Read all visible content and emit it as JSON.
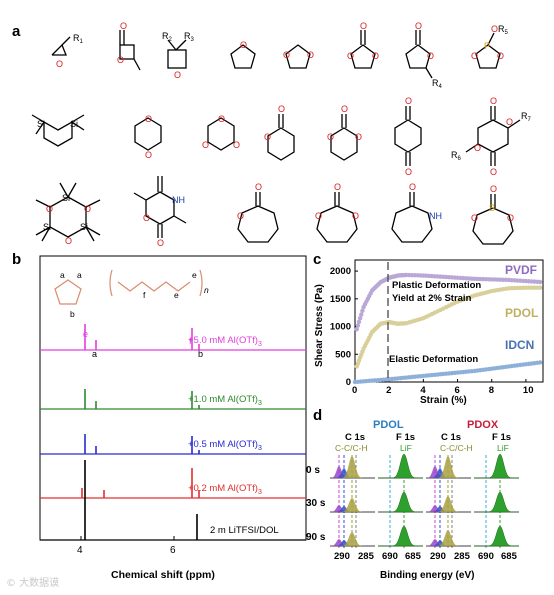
{
  "panels": {
    "a": "a",
    "b": "b",
    "c": "c",
    "d": "d"
  },
  "panel_a": {
    "substituents": {
      "r1": "R",
      "r1_sub": "1",
      "r2": "R",
      "r2_sub": "2",
      "r3": "R",
      "r3_sub": "3",
      "r4": "R",
      "r4_sub": "4",
      "r5": "O",
      "r5b": "R",
      "r5_sub": "5",
      "r6": "R",
      "r6_sub": "6",
      "r7": "R",
      "r7_sub": "7",
      "nh": "NH",
      "n": "N",
      "h": "H",
      "si": "Si",
      "s": "S",
      "p": "P",
      "o": "O"
    }
  },
  "panel_b": {
    "xlabel": "Chemical shift (ppm)",
    "tick_labels": [
      "4",
      "6"
    ],
    "structure_labels": {
      "a": "a",
      "b": "b",
      "e": "e",
      "f": "f",
      "n": "n"
    },
    "traces": [
      {
        "label": "+5.0 mM Al(OTf)",
        "sub": "3",
        "color": "#e040e0"
      },
      {
        "label": "+1.0 mM Al(OTf)",
        "sub": "3",
        "color": "#2e8b2e"
      },
      {
        "label": "+0.5 mM Al(OTf)",
        "sub": "3",
        "color": "#2a2ad0"
      },
      {
        "label": "+0.2 mM Al(OTf)",
        "sub": "3",
        "color": "#e03030"
      },
      {
        "label": "2 m LiTFSI/DOL",
        "sub": "",
        "color": "#000000"
      }
    ],
    "peak_labels": [
      "e",
      "a",
      "f",
      "b"
    ]
  },
  "chart_data": [
    {
      "type": "scatter",
      "title": "",
      "xlabel": "Strain (%)",
      "ylabel": "Shear Stress (Pa)",
      "xlim": [
        0,
        11
      ],
      "ylim": [
        0,
        2200
      ],
      "xticks": [
        0,
        2,
        4,
        6,
        8,
        10
      ],
      "yticks": [
        0,
        500,
        1000,
        1500,
        2000
      ],
      "annotations": [
        "Plastic Deformation",
        "Yield at 2% Strain",
        "Elastic Deformation"
      ],
      "series": [
        {
          "name": "PVDF",
          "color": "#b9a7d6",
          "x": [
            0.1,
            0.5,
            1,
            1.5,
            2,
            2.5,
            3,
            4,
            5,
            6,
            7,
            8,
            9,
            10,
            11
          ],
          "y": [
            950,
            1350,
            1650,
            1800,
            1880,
            1920,
            1930,
            1920,
            1900,
            1880,
            1860,
            1850,
            1840,
            1820,
            1800
          ]
        },
        {
          "name": "PDOL",
          "color": "#d8cf9a",
          "x": [
            0.1,
            0.5,
            1,
            1.5,
            2,
            2.5,
            3,
            4,
            5,
            6,
            7,
            8,
            9,
            10,
            11
          ],
          "y": [
            280,
            600,
            900,
            1050,
            1080,
            1050,
            1060,
            1150,
            1300,
            1450,
            1560,
            1640,
            1690,
            1700,
            1700
          ]
        },
        {
          "name": "IDCN",
          "color": "#8eb0d8",
          "x": [
            0,
            1,
            2,
            3,
            4,
            5,
            6,
            7,
            8,
            9,
            10,
            11
          ],
          "y": [
            0,
            25,
            50,
            80,
            110,
            140,
            170,
            200,
            240,
            280,
            320,
            360
          ]
        }
      ]
    }
  ],
  "panel_d": {
    "titles": {
      "pdol": "PDOL",
      "pdox": "PDOX"
    },
    "title_colors": {
      "pdol": "#2a7fc0",
      "pdox": "#c41e3a"
    },
    "subtitles": [
      "C 1s",
      "F 1s",
      "C 1s",
      "F 1s"
    ],
    "annotations": {
      "ccch": "C-C/C-H",
      "lif": "LiF"
    },
    "rows": [
      "0 s",
      "30 s",
      "90 s"
    ],
    "ticks": [
      "290",
      "285",
      "690",
      "685"
    ],
    "xlabel": "Binding energy (eV)"
  },
  "watermark": "© 大数据谟"
}
